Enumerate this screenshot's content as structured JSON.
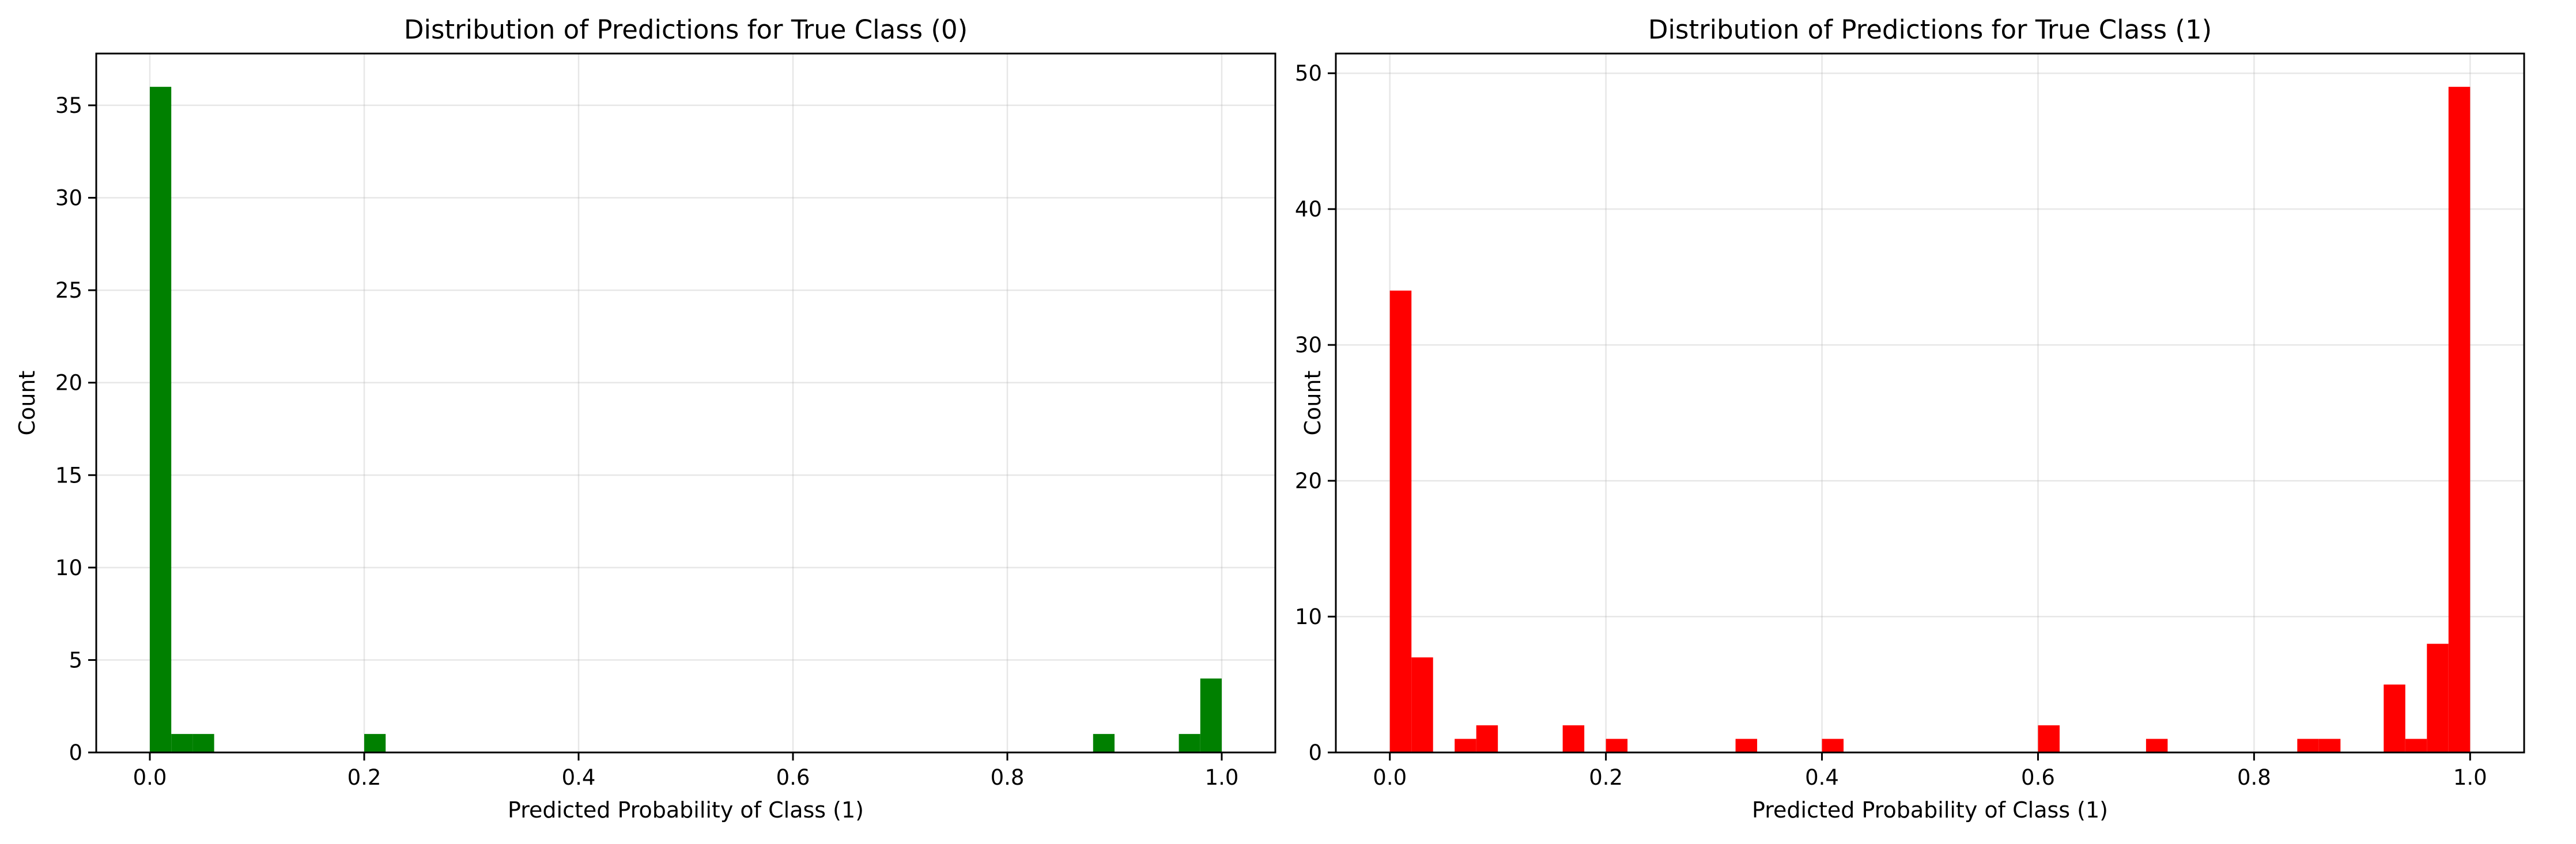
{
  "chart_data": [
    {
      "type": "bar",
      "title": "Distribution of Predictions for True Class (0)",
      "xlabel": "Predicted Probability of Class (1)",
      "ylabel": "Count",
      "xlim": [
        -0.05,
        1.05
      ],
      "ylim": [
        0,
        37.8
      ],
      "xticks": [
        "0.0",
        "0.2",
        "0.4",
        "0.6",
        "0.8",
        "1.0"
      ],
      "yticks": [
        "0",
        "5",
        "10",
        "15",
        "20",
        "25",
        "30",
        "35"
      ],
      "grid": true,
      "color": "#008000",
      "bin_width": 0.02,
      "bins": [
        {
          "x0": 0.0,
          "x1": 0.02,
          "count": 36
        },
        {
          "x0": 0.02,
          "x1": 0.04,
          "count": 1
        },
        {
          "x0": 0.04,
          "x1": 0.06,
          "count": 1
        },
        {
          "x0": 0.2,
          "x1": 0.22,
          "count": 1
        },
        {
          "x0": 0.88,
          "x1": 0.9,
          "count": 1
        },
        {
          "x0": 0.96,
          "x1": 0.98,
          "count": 1
        },
        {
          "x0": 0.98,
          "x1": 1.0,
          "count": 4
        }
      ]
    },
    {
      "type": "bar",
      "title": "Distribution of Predictions for True Class (1)",
      "xlabel": "Predicted Probability of Class (1)",
      "ylabel": "Count",
      "xlim": [
        -0.05,
        1.05
      ],
      "ylim": [
        0,
        51.45
      ],
      "xticks": [
        "0.0",
        "0.2",
        "0.4",
        "0.6",
        "0.8",
        "1.0"
      ],
      "yticks": [
        "0",
        "10",
        "20",
        "30",
        "40",
        "50"
      ],
      "grid": true,
      "color": "#ff0000",
      "bin_width": 0.02,
      "bins": [
        {
          "x0": 0.0,
          "x1": 0.02,
          "count": 34
        },
        {
          "x0": 0.02,
          "x1": 0.04,
          "count": 7
        },
        {
          "x0": 0.06,
          "x1": 0.08,
          "count": 1
        },
        {
          "x0": 0.08,
          "x1": 0.1,
          "count": 2
        },
        {
          "x0": 0.16,
          "x1": 0.18,
          "count": 2
        },
        {
          "x0": 0.2,
          "x1": 0.22,
          "count": 1
        },
        {
          "x0": 0.32,
          "x1": 0.34,
          "count": 1
        },
        {
          "x0": 0.4,
          "x1": 0.42,
          "count": 1
        },
        {
          "x0": 0.6,
          "x1": 0.62,
          "count": 2
        },
        {
          "x0": 0.7,
          "x1": 0.72,
          "count": 1
        },
        {
          "x0": 0.84,
          "x1": 0.86,
          "count": 1
        },
        {
          "x0": 0.86,
          "x1": 0.88,
          "count": 1
        },
        {
          "x0": 0.92,
          "x1": 0.94,
          "count": 5
        },
        {
          "x0": 0.94,
          "x1": 0.96,
          "count": 1
        },
        {
          "x0": 0.96,
          "x1": 0.98,
          "count": 8
        },
        {
          "x0": 0.98,
          "x1": 1.0,
          "count": 49
        }
      ]
    }
  ]
}
